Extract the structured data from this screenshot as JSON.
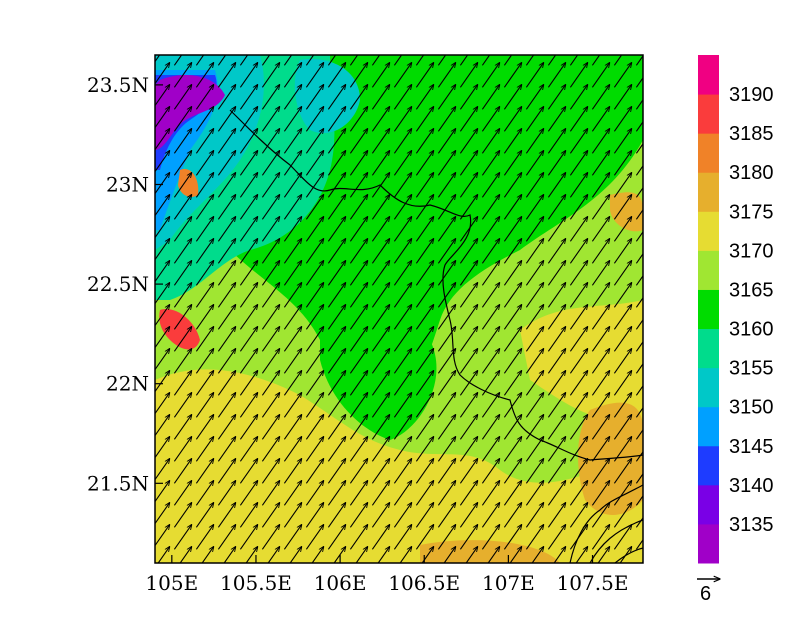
{
  "map": {
    "x_ticks": [
      {
        "value": 105.0,
        "label": "105E"
      },
      {
        "value": 105.5,
        "label": "105.5E"
      },
      {
        "value": 106.0,
        "label": "106E"
      },
      {
        "value": 106.5,
        "label": "106.5E"
      },
      {
        "value": 107.0,
        "label": "107E"
      },
      {
        "value": 107.5,
        "label": "107.5E"
      }
    ],
    "y_ticks": [
      {
        "value": 23.5,
        "label": "23.5N"
      },
      {
        "value": 23.0,
        "label": "23N"
      },
      {
        "value": 22.5,
        "label": "22.5N"
      },
      {
        "value": 22.0,
        "label": "22N"
      },
      {
        "value": 21.5,
        "label": "21.5N"
      }
    ],
    "lon_range": [
      104.9,
      107.8
    ],
    "lat_range": [
      21.1,
      23.65
    ],
    "field": "filled contours with wind vectors (uniform SW flow)",
    "vector_reference": {
      "label": "6"
    }
  },
  "colorbar": {
    "levels": [
      "3135",
      "3140",
      "3145",
      "3150",
      "3155",
      "3160",
      "3165",
      "3170",
      "3175",
      "3180",
      "3185",
      "3190"
    ],
    "colors": [
      "#a000c8",
      "#7a00e6",
      "#1e3cff",
      "#00a0ff",
      "#00c8c8",
      "#00dc8c",
      "#00dc00",
      "#a0e632",
      "#e6dc32",
      "#e6af2d",
      "#f08228",
      "#fa3c3c",
      "#f00082"
    ]
  }
}
